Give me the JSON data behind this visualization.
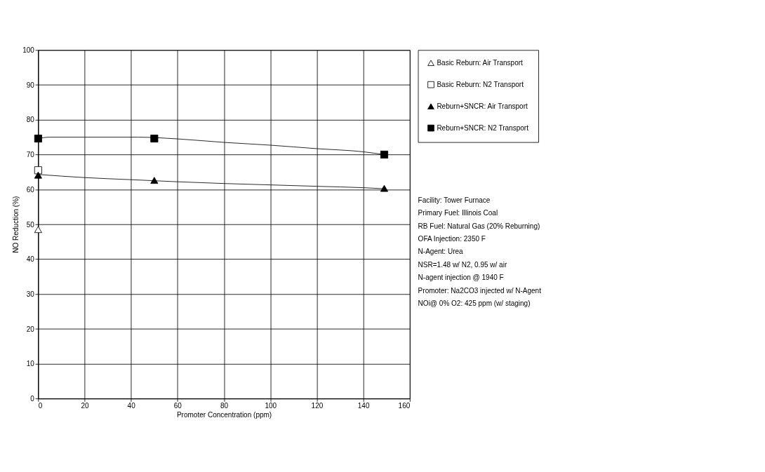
{
  "chart_data": {
    "type": "scatter",
    "xlabel": "Promoter Concentration (ppm)",
    "ylabel": "NO Reduction (%)",
    "xlim": [
      0,
      160
    ],
    "xticks": [
      0,
      20,
      40,
      60,
      80,
      100,
      120,
      140,
      160
    ],
    "ylim": [
      0,
      100
    ],
    "yticks": [
      0,
      10,
      20,
      30,
      40,
      50,
      60,
      70,
      80,
      90,
      100
    ],
    "grid": true,
    "legend": "top right",
    "series": [
      {
        "name": "Basic Reburn: Air Transport",
        "color": "#ffffff",
        "marker": "triangle",
        "x": [
          0
        ],
        "values": [
          48.5
        ]
      },
      {
        "name": "Basic Reburn: N2 Transport",
        "color": "#ffffff",
        "marker": "square",
        "x": [
          0
        ],
        "values": [
          65.5
        ]
      },
      {
        "name": "Reburn+SNCR: Air Transport",
        "color": "#000000",
        "marker": "triangle",
        "x": [
          0,
          50,
          149
        ],
        "values": [
          64.1,
          62.6,
          60.3
        ]
      },
      {
        "name": "Reburn+SNCR: N2 Transport",
        "color": "#000000",
        "marker": "square",
        "x": [
          0,
          50,
          149
        ],
        "values": [
          74.6,
          74.6,
          70
        ]
      },
      {
        "type": "line",
        "color": "#000000",
        "x": [
          0,
          5,
          20,
          43,
          60,
          80,
          100,
          120,
          140,
          149
        ],
        "values": [
          74.6,
          75,
          75,
          75,
          74.5,
          73.5,
          72.7,
          71.7,
          70.8,
          70
        ]
      },
      {
        "type": "line",
        "color": "#000000",
        "x": [
          0,
          20,
          40,
          60,
          80,
          100,
          120,
          140,
          149
        ],
        "values": [
          64.3,
          63.4,
          62.8,
          62.2,
          61.7,
          61.3,
          60.9,
          60.5,
          60.2
        ]
      }
    ],
    "annotations": [
      "Facility: Tower Furnace",
      "Primary Fuel: Illinois Coal",
      "RB Fuel: Natural Gas (20% Reburning)",
      "OFA Injection: 2350 F",
      "N-Agent: Urea",
      "NSR=1.48 w/ N2, 0.95 w/ air",
      "N-agent injection @ 1940 F",
      "Promoter: Na2CO3 injected w/ N-Agent",
      "NOi@ 0% O2: 425 ppm (w/ staging)"
    ]
  }
}
